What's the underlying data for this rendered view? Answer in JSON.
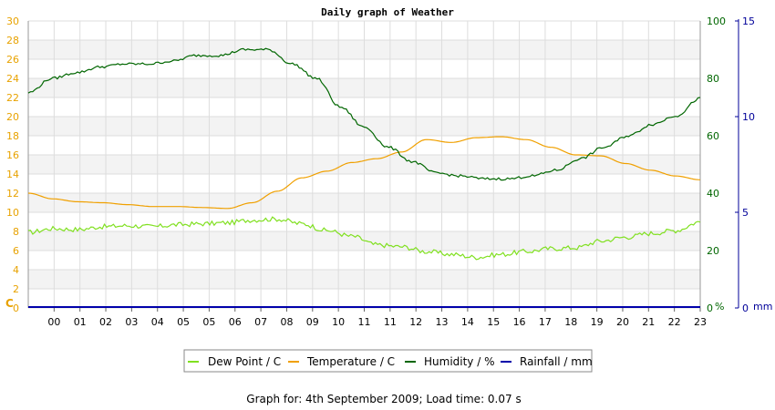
{
  "chart_data": {
    "type": "line",
    "title": "Daily graph of Weather",
    "x_ticks": [
      "00",
      "01",
      "02",
      "03",
      "04",
      "05",
      "05",
      "06",
      "07",
      "08",
      "09",
      "10",
      "11",
      "11",
      "12",
      "13",
      "14",
      "15",
      "16",
      "17",
      "18",
      "19",
      "20",
      "21",
      "22",
      "23"
    ],
    "axes": {
      "temperature": {
        "label": "C",
        "range": [
          0,
          30
        ],
        "ticks": [
          0,
          2,
          4,
          6,
          8,
          10,
          12,
          14,
          16,
          18,
          20,
          22,
          24,
          26,
          28,
          30
        ],
        "color": "#e8a200"
      },
      "humidity": {
        "label": "%",
        "range": [
          0,
          100
        ],
        "ticks": [
          0,
          20,
          40,
          60,
          80,
          100
        ],
        "color": "#006600"
      },
      "rainfall": {
        "label": "mm",
        "range": [
          0,
          15
        ],
        "ticks": [
          0,
          5,
          10,
          15
        ],
        "color": "#000099"
      }
    },
    "grid": true,
    "legend_position": "bottom",
    "series": [
      {
        "name": "Dew Point / C",
        "axis": "temperature",
        "color": "#80e020",
        "values": [
          7.9,
          8.3,
          8.2,
          8.5,
          8.6,
          8.5,
          8.7,
          8.8,
          8.9,
          9.2,
          9.3,
          8.8,
          8.1,
          7.5,
          6.6,
          6.4,
          5.9,
          5.6,
          5.3,
          5.6,
          5.9,
          6.2,
          6.3,
          7.0,
          7.4,
          7.8,
          8.1,
          9.0
        ]
      },
      {
        "name": "Temperature / C",
        "axis": "temperature",
        "color": "#f0a000",
        "values": [
          12.0,
          11.4,
          11.1,
          11.0,
          10.8,
          10.6,
          10.6,
          10.5,
          10.4,
          11.0,
          12.2,
          13.6,
          14.3,
          15.2,
          15.6,
          16.3,
          17.6,
          17.3,
          17.8,
          17.9,
          17.6,
          16.8,
          16.0,
          15.9,
          15.1,
          14.4,
          13.8,
          13.4
        ]
      },
      {
        "name": "Humidity / %",
        "axis": "humidity",
        "color": "#006600",
        "values": [
          75,
          80,
          82,
          84,
          85,
          85,
          86,
          88,
          88,
          90,
          90,
          85,
          80,
          70,
          63,
          56,
          51,
          47,
          46,
          45,
          45,
          46,
          48,
          52,
          56,
          60,
          64,
          67,
          73
        ]
      },
      {
        "name": "Rainfall / mm",
        "axis": "rainfall",
        "color": "#0000aa",
        "values": [
          0,
          0,
          0,
          0,
          0,
          0,
          0,
          0,
          0,
          0,
          0,
          0,
          0,
          0,
          0,
          0,
          0,
          0,
          0,
          0,
          0,
          0,
          0,
          0,
          0,
          0,
          0,
          0
        ]
      }
    ]
  },
  "footer": {
    "text": "Graph for: 4th September 2009; Load time: 0.07 s"
  }
}
